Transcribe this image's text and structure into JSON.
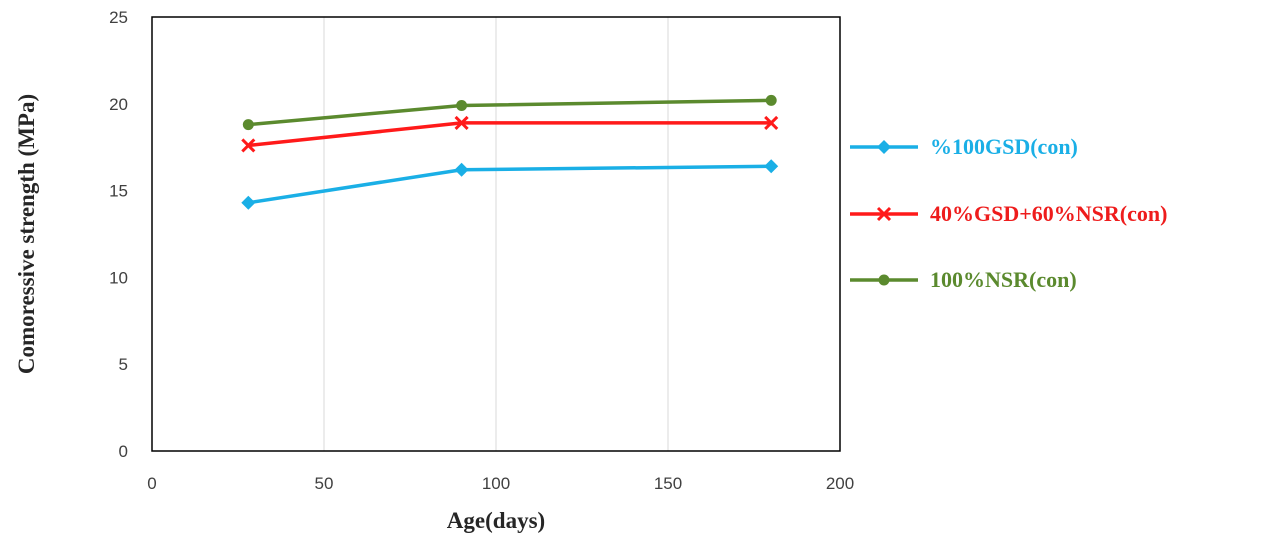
{
  "chart_data": {
    "type": "line",
    "title": "",
    "xlabel": "Age(days)",
    "ylabel": "Comoressive strength (MPa)",
    "xlim": [
      0,
      200
    ],
    "ylim": [
      0,
      25
    ],
    "xticks": [
      "0",
      "50",
      "100",
      "150",
      "200"
    ],
    "yticks": [
      "0",
      "5",
      "10",
      "15",
      "20",
      "25"
    ],
    "grid": "vertical",
    "legend_position": "right",
    "series": [
      {
        "name": "%100GSD(con)",
        "color": "#1AAFE6",
        "text_color": "#1AAFE6",
        "marker": "diamond",
        "x": [
          28,
          90,
          180
        ],
        "y": [
          14.3,
          16.2,
          16.4
        ]
      },
      {
        "name": "40%GSD+60%NSR(con)",
        "color": "#FF1A1A",
        "text_color": "#EE1C1C",
        "marker": "x",
        "x": [
          28,
          90,
          180
        ],
        "y": [
          17.6,
          18.9,
          18.9
        ]
      },
      {
        "name": "100%NSR(con)",
        "color": "#5B8A2E",
        "text_color": "#5B8A2E",
        "marker": "circle",
        "x": [
          28,
          90,
          180
        ],
        "y": [
          18.8,
          19.9,
          20.2
        ]
      }
    ]
  }
}
